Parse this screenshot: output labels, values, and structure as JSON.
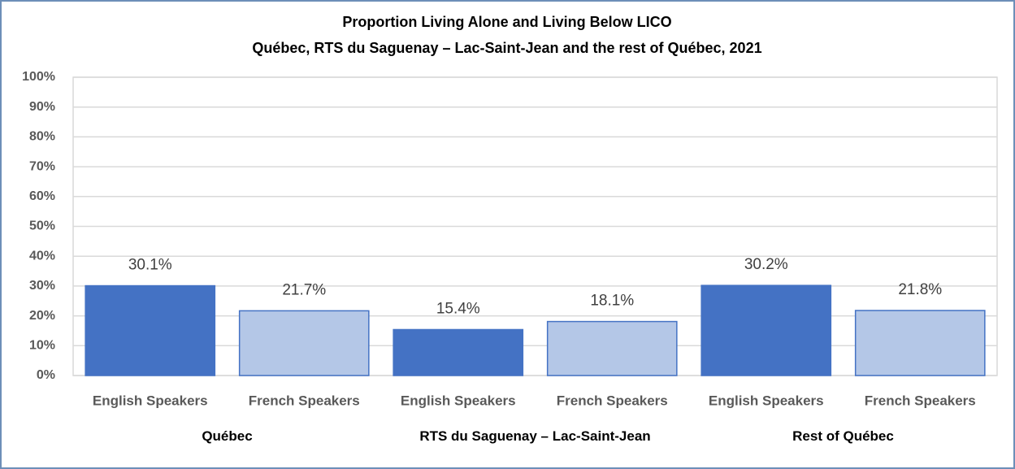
{
  "chart_data": {
    "type": "bar",
    "title": "Proportion  Living Alone and Living Below LICO",
    "subtitle": "Québec, RTS du Saguenay – Lac-Saint-Jean and the rest of Québec, 2021",
    "categories": [
      "Québec",
      "RTS du Saguenay – Lac-Saint-Jean",
      "Rest of Québec"
    ],
    "series": [
      {
        "name": "English Speakers",
        "color": "#4472c4",
        "values": [
          30.1,
          15.4,
          30.2
        ],
        "value_labels": [
          "30.1%",
          "15.4%",
          "30.2%"
        ]
      },
      {
        "name": "French Speakers",
        "color": "#b4c7e7",
        "values": [
          21.7,
          18.1,
          21.8
        ],
        "value_labels": [
          "21.7%",
          "18.1%",
          "21.8%"
        ]
      }
    ],
    "ylim": [
      0,
      100
    ],
    "yticks": [
      {
        "value": 0,
        "label": "0%"
      },
      {
        "value": 10,
        "label": "10%"
      },
      {
        "value": 20,
        "label": "20%"
      },
      {
        "value": 30,
        "label": "30%"
      },
      {
        "value": 40,
        "label": "40%"
      },
      {
        "value": 50,
        "label": "50%"
      },
      {
        "value": 60,
        "label": "60%"
      },
      {
        "value": 70,
        "label": "70%"
      },
      {
        "value": 80,
        "label": "80%"
      },
      {
        "value": 90,
        "label": "90%"
      },
      {
        "value": 100,
        "label": "100%"
      }
    ],
    "grid": true
  }
}
